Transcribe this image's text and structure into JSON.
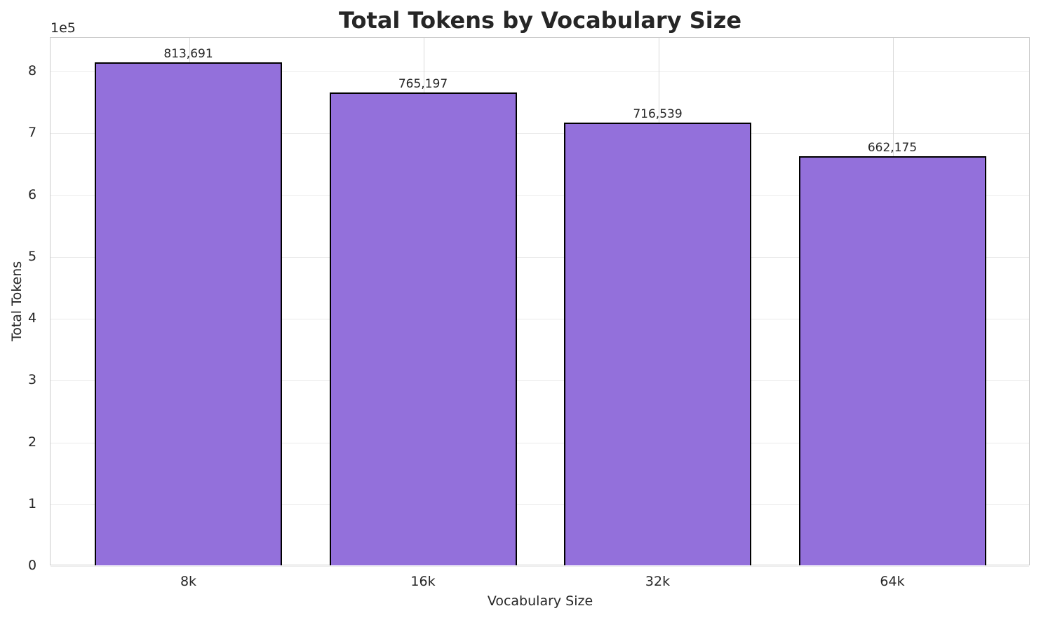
{
  "chart_data": {
    "type": "bar",
    "title": "Total Tokens by Vocabulary Size",
    "xlabel": "Vocabulary Size",
    "ylabel": "Total Tokens",
    "y_offset_label": "1e5",
    "categories": [
      "8k",
      "16k",
      "32k",
      "64k"
    ],
    "values": [
      813691,
      765197,
      716539,
      662175
    ],
    "value_labels": [
      "813,691",
      "765,197",
      "716,539",
      "662,175"
    ],
    "yticks": [
      "0",
      "1",
      "2",
      "3",
      "4",
      "5",
      "6",
      "7",
      "8"
    ],
    "ylim": [
      0,
      855000
    ],
    "grid": true,
    "bar_color": "#9370DB",
    "bar_edge_color": "#000000"
  }
}
